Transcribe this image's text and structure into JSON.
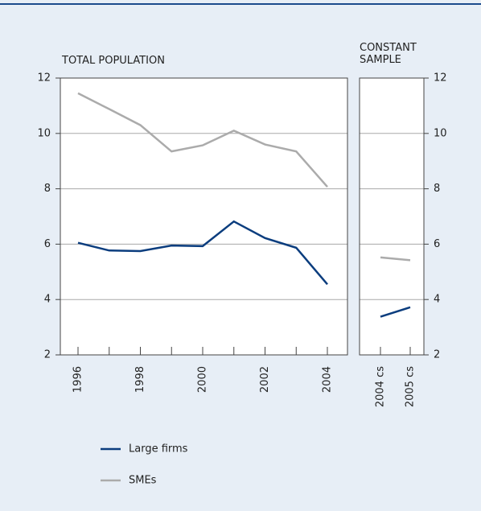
{
  "chart_data": [
    {
      "type": "line",
      "title": "TOTAL POPULATION",
      "categories": [
        "1996",
        null,
        "1998",
        null,
        "2000",
        null,
        "2002",
        null,
        "2004"
      ],
      "series": [
        {
          "name": "Large firms",
          "color": "#0b3d7e",
          "values": [
            6.05,
            5.77,
            5.75,
            5.95,
            5.93,
            6.82,
            6.22,
            5.87,
            4.55
          ]
        },
        {
          "name": "SMEs",
          "color": "#ababab",
          "values": [
            11.45,
            10.88,
            10.3,
            9.35,
            9.57,
            10.1,
            9.6,
            9.35,
            8.07
          ]
        }
      ],
      "ylim": [
        2,
        12
      ],
      "yticks": [
        2,
        4,
        6,
        8,
        10,
        12
      ],
      "grid": true
    },
    {
      "type": "line",
      "title": "CONSTANT SAMPLE",
      "categories": [
        "2004 cs",
        "2005 cs"
      ],
      "series": [
        {
          "color": "#0b3d7e",
          "values": [
            3.38,
            3.72
          ]
        },
        {
          "color": "#ababab",
          "values": [
            5.52,
            5.42
          ]
        }
      ],
      "ylim": [
        2,
        12
      ],
      "yticks": [
        2,
        4,
        6,
        8,
        10,
        12
      ],
      "grid": true
    }
  ]
}
